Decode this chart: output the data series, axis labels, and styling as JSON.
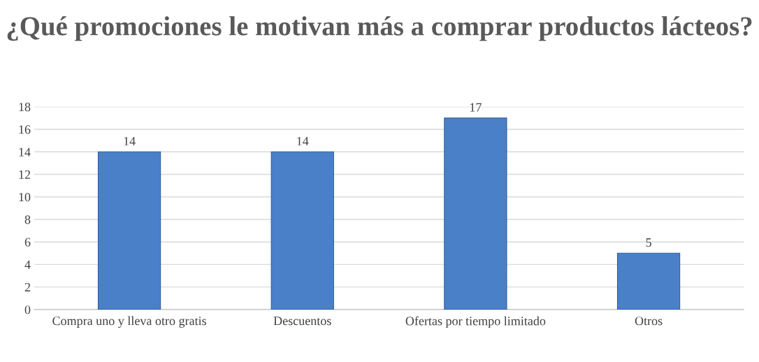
{
  "chart_data": {
    "type": "bar",
    "title": "¿Qué promociones le motivan más a comprar productos lácteos?",
    "categories": [
      "Compra uno y lleva otro gratis",
      "Descuentos",
      "Ofertas por tiempo limitado",
      "Otros"
    ],
    "values": [
      14,
      14,
      17,
      5
    ],
    "color": "#4a80c8",
    "ylim": [
      0,
      18
    ],
    "yticks": [
      0,
      2,
      4,
      6,
      8,
      10,
      12,
      14,
      16,
      18
    ],
    "grid": "y",
    "data_labels": true,
    "legend": false
  }
}
